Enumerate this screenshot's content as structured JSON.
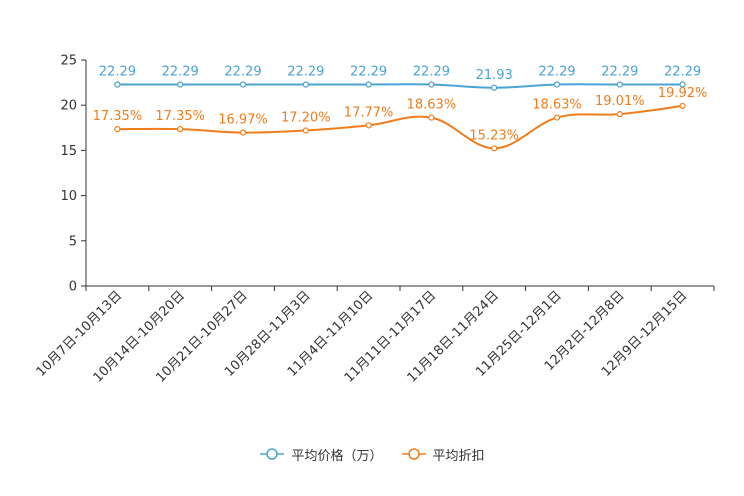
{
  "chart_data": {
    "type": "line",
    "categories": [
      "10月7日-10月13日",
      "10月14日-10月20日",
      "10月21日-10月27日",
      "10月28日-11月3日",
      "11月4日-11月10日",
      "11月11日-11月17日",
      "11月18日-11月24日",
      "11月25日-12月1日",
      "12月2日-12月8日",
      "12月9日-12月15日"
    ],
    "series": [
      {
        "name": "平均价格（万）",
        "color": "#4aa3d3",
        "values": [
          22.29,
          22.29,
          22.29,
          22.29,
          22.29,
          22.29,
          21.93,
          22.29,
          22.29,
          22.29
        ],
        "labels": [
          "22.29",
          "22.29",
          "22.29",
          "22.29",
          "22.29",
          "22.29",
          "21.93",
          "22.29",
          "22.29",
          "22.29"
        ]
      },
      {
        "name": "平均折扣",
        "color": "#f07c1b",
        "values": [
          17.35,
          17.35,
          16.97,
          17.2,
          17.77,
          18.63,
          15.23,
          18.63,
          19.01,
          19.92
        ],
        "labels": [
          "17.35%",
          "17.35%",
          "16.97%",
          "17.20%",
          "17.77%",
          "18.63%",
          "15.23%",
          "18.63%",
          "19.01%",
          "19.92%"
        ]
      }
    ],
    "yticks": [
      "0",
      "5",
      "10",
      "15",
      "20",
      "25"
    ],
    "ylim": [
      0,
      25
    ],
    "title": "",
    "xlabel": "",
    "ylabel": "",
    "legend": "bottom-center"
  }
}
